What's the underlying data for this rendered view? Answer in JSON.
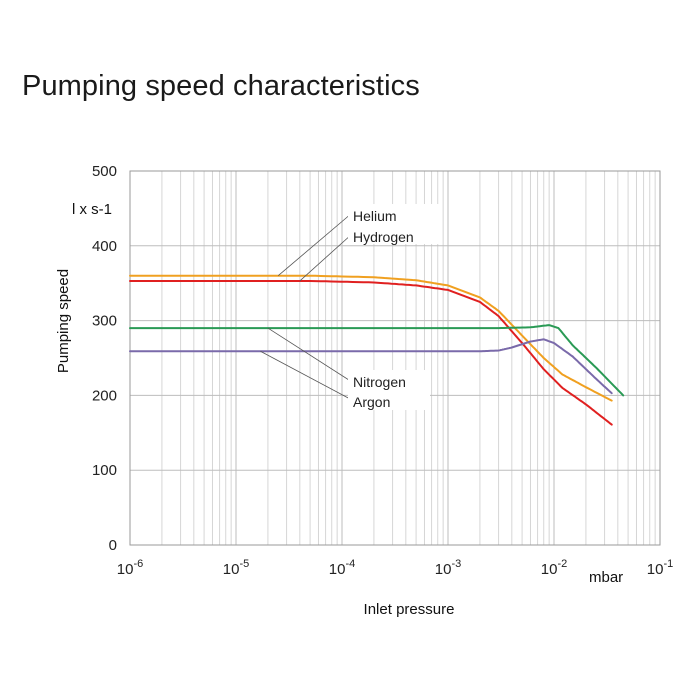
{
  "chart_data": {
    "type": "line",
    "title": "Pumping speed characteristics",
    "xlabel": "Inlet pressure",
    "ylabel": "Pumping speed",
    "x_unit": "mbar",
    "y_unit": "l x s-1",
    "x_scale": "log",
    "xlim": [
      1e-06,
      0.1
    ],
    "ylim": [
      0,
      500
    ],
    "grid": true,
    "x_ticks": [
      {
        "base": "10",
        "exp": "-6",
        "value": 1e-06
      },
      {
        "base": "10",
        "exp": "-5",
        "value": 1e-05
      },
      {
        "base": "10",
        "exp": "-4",
        "value": 0.0001
      },
      {
        "base": "10",
        "exp": "-3",
        "value": 0.001
      },
      {
        "base": "10",
        "exp": "-2",
        "value": 0.01
      },
      {
        "base": "10",
        "exp": "-1",
        "value": 0.1
      }
    ],
    "y_ticks": [
      0,
      100,
      200,
      300,
      400,
      500
    ],
    "series": [
      {
        "name": "Helium",
        "color": "#f0a020",
        "x": [
          1e-06,
          1e-05,
          5e-05,
          0.0002,
          0.0005,
          0.001,
          0.002,
          0.003,
          0.005,
          0.008,
          0.012,
          0.02,
          0.035
        ],
        "y": [
          360,
          360,
          360,
          358,
          354,
          347,
          331,
          313,
          280,
          250,
          228,
          211,
          193
        ]
      },
      {
        "name": "Hydrogen",
        "color": "#e02020",
        "x": [
          1e-06,
          1e-05,
          5e-05,
          0.0002,
          0.0005,
          0.001,
          0.002,
          0.003,
          0.005,
          0.008,
          0.012,
          0.02,
          0.035
        ],
        "y": [
          353,
          353,
          353,
          351,
          347,
          341,
          325,
          306,
          270,
          235,
          210,
          188,
          161
        ]
      },
      {
        "name": "Nitrogen",
        "color": "#2a9a55",
        "x": [
          1e-06,
          0.0001,
          0.001,
          0.003,
          0.006,
          0.009,
          0.011,
          0.015,
          0.025,
          0.045
        ],
        "y": [
          290,
          290,
          290,
          290,
          291,
          294,
          290,
          267,
          237,
          200
        ]
      },
      {
        "name": "Argon",
        "color": "#7a6aaa",
        "x": [
          1e-06,
          0.0001,
          0.002,
          0.003,
          0.004,
          0.006,
          0.008,
          0.01,
          0.015,
          0.025,
          0.035
        ],
        "y": [
          259,
          259,
          259,
          260,
          264,
          272,
          275,
          270,
          252,
          222,
          203
        ]
      }
    ],
    "annotations": [
      {
        "text": "Helium",
        "series": "Helium",
        "point_x": 2.5e-05
      },
      {
        "text": "Hydrogen",
        "series": "Hydrogen",
        "point_x": 4e-05
      },
      {
        "text": "Nitrogen",
        "series": "Nitrogen",
        "point_x": 2e-05
      },
      {
        "text": "Argon",
        "series": "Argon",
        "point_x": 1.7e-05
      }
    ]
  }
}
